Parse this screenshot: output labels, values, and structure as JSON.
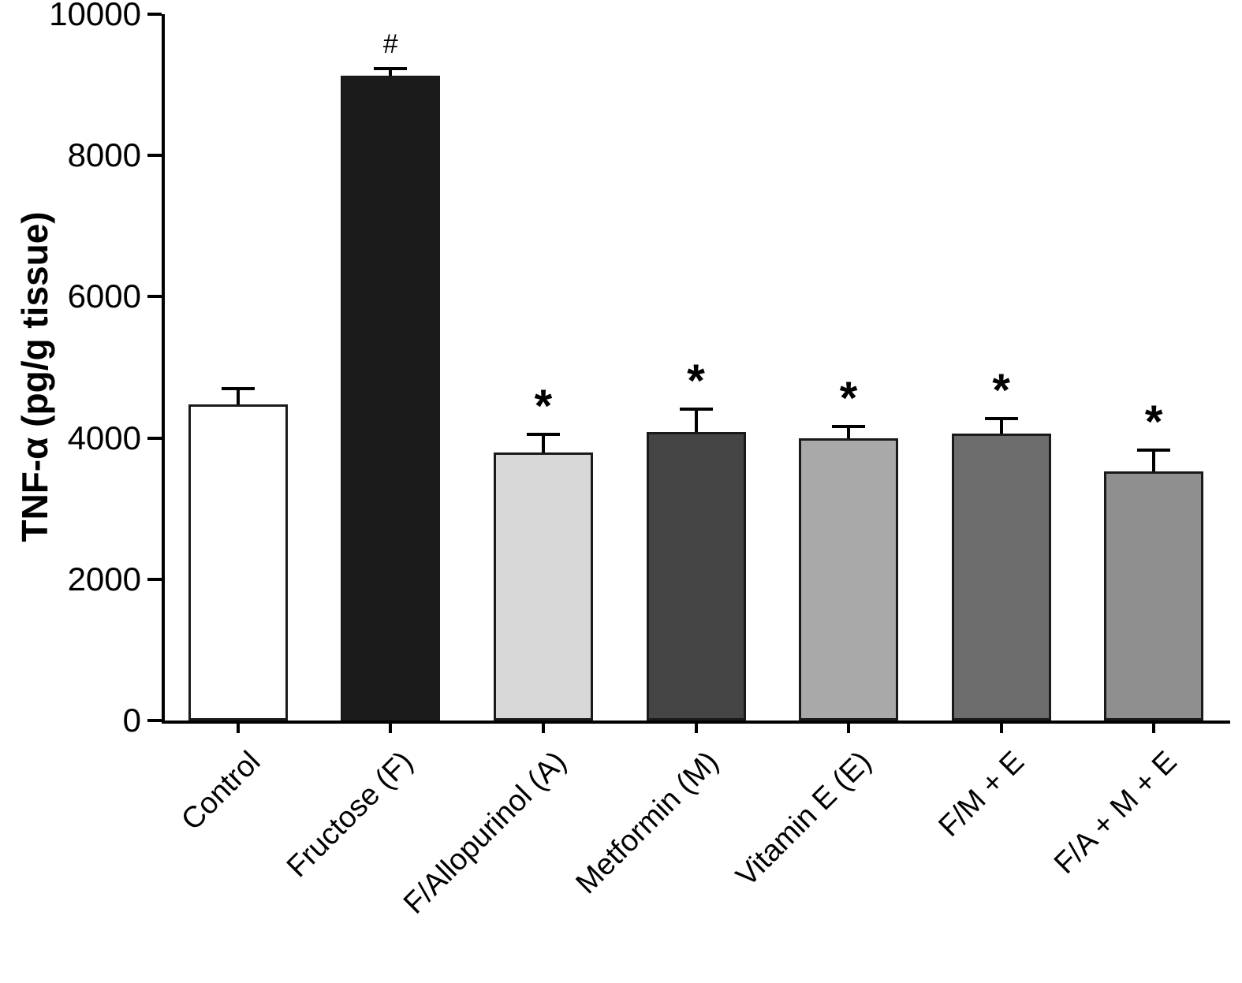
{
  "chart_data": {
    "type": "bar",
    "title": "",
    "ylabel": "TNF-α (pg/g tissue)",
    "xlabel": "",
    "ylim": [
      0,
      10000
    ],
    "yticks": [
      0,
      2000,
      4000,
      6000,
      8000,
      10000
    ],
    "categories": [
      "Control",
      "Fructose (F)",
      "F/Allopurinol (A)",
      "Metformin (M)",
      "Vitamin E (E)",
      "F/M + E",
      "F/A + M + E"
    ],
    "values": [
      4480,
      9130,
      3800,
      4090,
      4000,
      4060,
      3530
    ],
    "errors": [
      220,
      100,
      250,
      320,
      160,
      210,
      300
    ],
    "annotations": [
      "",
      "#",
      "*",
      "*",
      "*",
      "*",
      "*"
    ],
    "bar_colors": [
      "#ffffff",
      "#1b1b1b",
      "#d8d8d8",
      "#454545",
      "#a9a9a9",
      "#6d6d6d",
      "#8f8f8f"
    ],
    "bar_border_color": "#1a1a1a",
    "axis_color": "#000000",
    "grid": false,
    "legend": null,
    "error_bar_direction": "upper"
  }
}
